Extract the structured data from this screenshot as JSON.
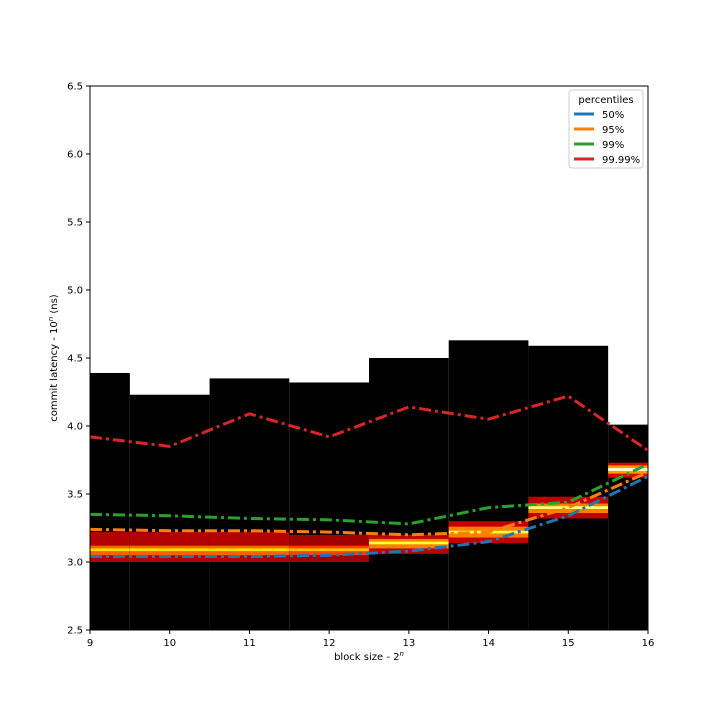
{
  "chart_data": {
    "type": "line",
    "xlabel_base": "block size - 2",
    "xlabel_sup": "n",
    "ylabel_base": "commit latency - 10",
    "ylabel_sup": "n",
    "ylabel_suffix": "  (ns)",
    "xlim": [
      9,
      16
    ],
    "ylim": [
      2.5,
      6.5
    ],
    "xticks": [
      "9",
      "10",
      "11",
      "12",
      "13",
      "14",
      "15",
      "16"
    ],
    "yticks": [
      "2.5",
      "3.0",
      "3.5",
      "4.0",
      "4.5",
      "5.0",
      "5.5",
      "6.0",
      "6.5"
    ],
    "legend": {
      "title": "percentiles",
      "position": "top-right"
    },
    "x": [
      9,
      10,
      11,
      12,
      13,
      14,
      15,
      16
    ],
    "series": [
      {
        "name": "50%",
        "color": "#1f77b4",
        "values": [
          3.04,
          3.04,
          3.04,
          3.05,
          3.08,
          3.15,
          3.34,
          3.63
        ]
      },
      {
        "name": "95%",
        "color": "#ff7f0e",
        "values": [
          3.24,
          3.23,
          3.23,
          3.22,
          3.2,
          3.22,
          3.4,
          3.66
        ]
      },
      {
        "name": "99%",
        "color": "#2ca02c",
        "values": [
          3.35,
          3.34,
          3.32,
          3.31,
          3.28,
          3.4,
          3.44,
          3.72
        ]
      },
      {
        "name": "99.99%",
        "color": "#d62728",
        "values": [
          3.92,
          3.85,
          4.09,
          3.92,
          4.14,
          4.05,
          4.22,
          3.82
        ]
      }
    ],
    "histogram": {
      "description_colormap": "black-red-yellow-white",
      "columns": [
        {
          "x_from": 9.0,
          "x_to": 9.5,
          "max": 4.39,
          "bands": [
            {
              "lo": 3.0,
              "hi": 3.22,
              "level": 0.28
            },
            {
              "lo": 3.05,
              "hi": 3.12,
              "level": 0.55
            },
            {
              "lo": 3.08,
              "hi": 3.1,
              "level": 0.75
            }
          ]
        },
        {
          "x_from": 9.5,
          "x_to": 10.5,
          "max": 4.23,
          "bands": [
            {
              "lo": 3.0,
              "hi": 3.22,
              "level": 0.28
            },
            {
              "lo": 3.05,
              "hi": 3.12,
              "level": 0.55
            },
            {
              "lo": 3.08,
              "hi": 3.1,
              "level": 0.75
            }
          ]
        },
        {
          "x_from": 10.5,
          "x_to": 11.5,
          "max": 4.35,
          "bands": [
            {
              "lo": 3.0,
              "hi": 3.22,
              "level": 0.28
            },
            {
              "lo": 3.05,
              "hi": 3.12,
              "level": 0.55
            },
            {
              "lo": 3.08,
              "hi": 3.1,
              "level": 0.75
            }
          ]
        },
        {
          "x_from": 11.5,
          "x_to": 12.5,
          "max": 4.32,
          "bands": [
            {
              "lo": 3.0,
              "hi": 3.2,
              "level": 0.25
            },
            {
              "lo": 3.05,
              "hi": 3.12,
              "level": 0.5
            },
            {
              "lo": 3.08,
              "hi": 3.1,
              "level": 0.7
            }
          ]
        },
        {
          "x_from": 12.5,
          "x_to": 13.5,
          "max": 4.5,
          "bands": [
            {
              "lo": 3.06,
              "hi": 3.2,
              "level": 0.3
            },
            {
              "lo": 3.1,
              "hi": 3.17,
              "level": 0.6
            },
            {
              "lo": 3.13,
              "hi": 3.15,
              "level": 0.85
            }
          ]
        },
        {
          "x_from": 13.5,
          "x_to": 14.5,
          "max": 4.63,
          "bands": [
            {
              "lo": 3.14,
              "hi": 3.3,
              "level": 0.3
            },
            {
              "lo": 3.18,
              "hi": 3.26,
              "level": 0.6
            },
            {
              "lo": 3.21,
              "hi": 3.23,
              "level": 0.85
            }
          ]
        },
        {
          "x_from": 14.5,
          "x_to": 15.5,
          "max": 4.59,
          "bands": [
            {
              "lo": 3.32,
              "hi": 3.48,
              "level": 0.3
            },
            {
              "lo": 3.36,
              "hi": 3.43,
              "level": 0.6
            },
            {
              "lo": 3.39,
              "hi": 3.41,
              "level": 0.9
            }
          ]
        },
        {
          "x_from": 15.5,
          "x_to": 16.0,
          "max": 4.01,
          "bands": [
            {
              "lo": 3.62,
              "hi": 3.73,
              "level": 0.35
            },
            {
              "lo": 3.65,
              "hi": 3.71,
              "level": 0.65
            },
            {
              "lo": 3.67,
              "hi": 3.69,
              "level": 0.97
            }
          ]
        }
      ]
    }
  }
}
